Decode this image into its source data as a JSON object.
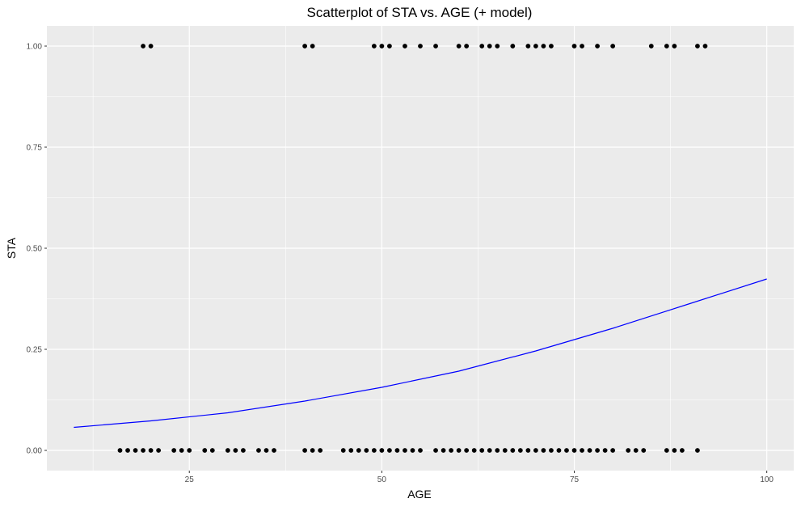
{
  "chart_data": {
    "type": "scatter",
    "title": "Scatterplot of STA vs. AGE (+ model)",
    "xlabel": "AGE",
    "ylabel": "STA",
    "xlim": [
      6.5,
      103.5
    ],
    "ylim": [
      -0.05,
      1.05
    ],
    "x_ticks": [
      25,
      50,
      75,
      100
    ],
    "x_tick_labels": [
      "25",
      "50",
      "75",
      "100"
    ],
    "y_ticks": [
      0,
      0.25,
      0.5,
      0.75,
      1
    ],
    "y_tick_labels": [
      "0.00",
      "0.25",
      "0.50",
      "0.75",
      "1.00"
    ],
    "grid": true,
    "colors": {
      "panel": "#ebebeb",
      "grid": "#ffffff",
      "points": "#000000",
      "model_line": "#0000ff"
    },
    "series": [
      {
        "kind": "points",
        "points": [
          [
            19,
            1
          ],
          [
            20,
            1
          ],
          [
            40,
            1
          ],
          [
            41,
            1
          ],
          [
            49,
            1
          ],
          [
            50,
            1
          ],
          [
            51,
            1
          ],
          [
            53,
            1
          ],
          [
            55,
            1
          ],
          [
            57,
            1
          ],
          [
            60,
            1
          ],
          [
            61,
            1
          ],
          [
            63,
            1
          ],
          [
            64,
            1
          ],
          [
            65,
            1
          ],
          [
            67,
            1
          ],
          [
            69,
            1
          ],
          [
            70,
            1
          ],
          [
            71,
            1
          ],
          [
            72,
            1
          ],
          [
            75,
            1
          ],
          [
            76,
            1
          ],
          [
            78,
            1
          ],
          [
            80,
            1
          ],
          [
            85,
            1
          ],
          [
            87,
            1
          ],
          [
            88,
            1
          ],
          [
            91,
            1
          ],
          [
            92,
            1
          ],
          [
            16,
            0
          ],
          [
            17,
            0
          ],
          [
            18,
            0
          ],
          [
            19,
            0
          ],
          [
            20,
            0
          ],
          [
            21,
            0
          ],
          [
            23,
            0
          ],
          [
            24,
            0
          ],
          [
            25,
            0
          ],
          [
            27,
            0
          ],
          [
            28,
            0
          ],
          [
            30,
            0
          ],
          [
            31,
            0
          ],
          [
            32,
            0
          ],
          [
            34,
            0
          ],
          [
            35,
            0
          ],
          [
            36,
            0
          ],
          [
            40,
            0
          ],
          [
            41,
            0
          ],
          [
            42,
            0
          ],
          [
            45,
            0
          ],
          [
            46,
            0
          ],
          [
            47,
            0
          ],
          [
            48,
            0
          ],
          [
            49,
            0
          ],
          [
            50,
            0
          ],
          [
            51,
            0
          ],
          [
            52,
            0
          ],
          [
            53,
            0
          ],
          [
            54,
            0
          ],
          [
            55,
            0
          ],
          [
            57,
            0
          ],
          [
            58,
            0
          ],
          [
            59,
            0
          ],
          [
            60,
            0
          ],
          [
            61,
            0
          ],
          [
            62,
            0
          ],
          [
            63,
            0
          ],
          [
            64,
            0
          ],
          [
            65,
            0
          ],
          [
            66,
            0
          ],
          [
            67,
            0
          ],
          [
            68,
            0
          ],
          [
            69,
            0
          ],
          [
            70,
            0
          ],
          [
            71,
            0
          ],
          [
            72,
            0
          ],
          [
            73,
            0
          ],
          [
            74,
            0
          ],
          [
            75,
            0
          ],
          [
            76,
            0
          ],
          [
            77,
            0
          ],
          [
            78,
            0
          ],
          [
            79,
            0
          ],
          [
            80,
            0
          ],
          [
            82,
            0
          ],
          [
            83,
            0
          ],
          [
            84,
            0
          ],
          [
            87,
            0
          ],
          [
            88,
            0
          ],
          [
            89,
            0
          ],
          [
            91,
            0
          ]
        ]
      },
      {
        "kind": "line",
        "points": [
          [
            10,
            0.057
          ],
          [
            20,
            0.073
          ],
          [
            30,
            0.093
          ],
          [
            40,
            0.122
          ],
          [
            50,
            0.156
          ],
          [
            60,
            0.196
          ],
          [
            70,
            0.246
          ],
          [
            80,
            0.302
          ],
          [
            90,
            0.363
          ],
          [
            100,
            0.424
          ]
        ]
      }
    ]
  }
}
